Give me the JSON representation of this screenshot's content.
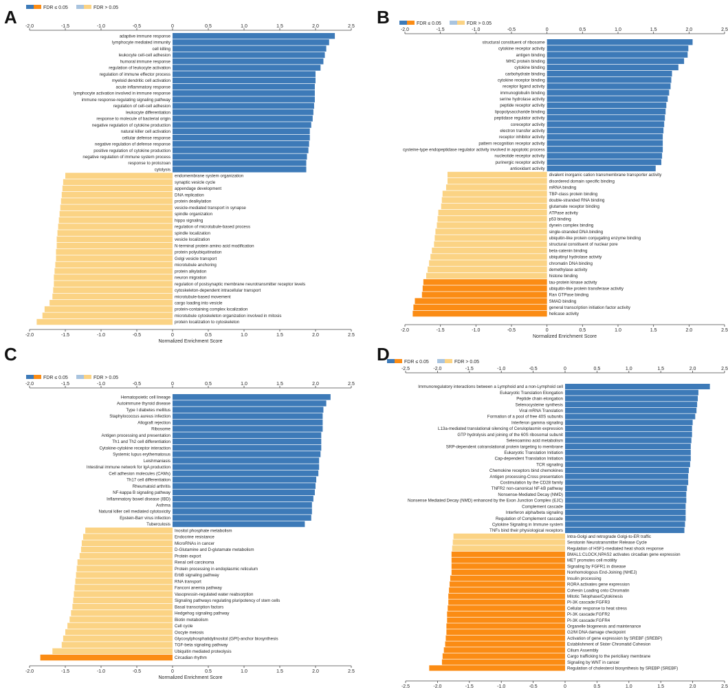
{
  "axis_label": "Normalized Enrichment Score",
  "colors": {
    "pos_sig": "#3d7ab8",
    "pos_nonsig": "#a9c4df",
    "neg_sig": "#fb8c14",
    "neg_nonsig": "#fbd384",
    "axis": "#444444",
    "text": "#222222",
    "letter": "#111111"
  },
  "chart_data": [
    {
      "panel": "A",
      "type": "bar",
      "orientation": "horizontal",
      "xlabel": "Normalized Enrichment Score",
      "xlim": [
        -2.0,
        2.5
      ],
      "xticks": [
        -2.0,
        -1.5,
        -1.0,
        -0.5,
        0,
        0.5,
        1.0,
        1.5,
        2.0,
        2.5
      ],
      "legend": [
        {
          "label": "FDR ≤ 0.05",
          "swatches": [
            "pos_sig",
            "neg_sig"
          ]
        },
        {
          "label": "FDR > 0.05",
          "swatches": [
            "pos_nonsig",
            "neg_nonsig"
          ]
        }
      ],
      "categories": [
        "adaptive immune response",
        "lymphocyte mediated immunity",
        "cell killing",
        "leukocyte cell-cell adhesion",
        "humoral immune response",
        "regulation of leukocyte activation",
        "regulation of immune effector process",
        "myeloid dendritic cell activation",
        "acute inflammatory response",
        "lymphocyte activation involved in immune response",
        "immune response-regulating signaling pathway",
        "regulation of cell-cell adhesion",
        "leukocyte differentiation",
        "response to molecule of bacterial origin",
        "negative regulation of cytokine production",
        "natural killer cell activation",
        "cellular defense response",
        "negative regulation of defense response",
        "positive regulation of cytokine production",
        "negative regulation of immune system process",
        "response to protozoan",
        "cytolysis",
        "endomembrane system organization",
        "synaptic vesicle cycle",
        "appendage development",
        "DNA replication",
        "protein dealkylation",
        "vesicle-mediated transport in synapse",
        "spindle organization",
        "hippo signaling",
        "regulation of microtubule-based process",
        "spindle localization",
        "vesicle localization",
        "N-terminal protein amino acid modification",
        "protein polyubiquitination",
        "Golgi vesicle transport",
        "microtubule anchoring",
        "protein alkylation",
        "neuron migration",
        "regulation of postsynaptic membrane neurotransmitter receptor levels",
        "cytoskeleton-dependent intracellular transport",
        "microtubule-based movement",
        "cargo loading into vesicle",
        "protein-containing complex localization",
        "microtubule cytoskeleton organization involved in mitosis",
        "protein localization to cytoskeleton"
      ],
      "values": [
        2.27,
        2.19,
        2.15,
        2.13,
        2.11,
        2.07,
        2.0,
        2.0,
        1.99,
        1.99,
        1.99,
        1.98,
        1.97,
        1.96,
        1.94,
        1.92,
        1.92,
        1.91,
        1.9,
        1.88,
        1.87,
        1.87,
        -1.5,
        -1.53,
        -1.54,
        -1.55,
        -1.56,
        -1.57,
        -1.58,
        -1.59,
        -1.6,
        -1.61,
        -1.62,
        -1.62,
        -1.63,
        -1.63,
        -1.64,
        -1.65,
        -1.66,
        -1.66,
        -1.67,
        -1.68,
        -1.72,
        -1.79,
        -1.82,
        -1.9
      ],
      "significant": [
        true,
        true,
        true,
        true,
        true,
        true,
        true,
        true,
        true,
        true,
        true,
        true,
        true,
        true,
        true,
        true,
        true,
        true,
        true,
        true,
        true,
        true,
        false,
        false,
        false,
        false,
        false,
        false,
        false,
        false,
        false,
        false,
        false,
        false,
        false,
        false,
        false,
        false,
        false,
        false,
        false,
        false,
        false,
        false,
        false,
        false
      ]
    },
    {
      "panel": "B",
      "type": "bar",
      "orientation": "horizontal",
      "xlabel": "Normalized Enrichment Score",
      "xlim": [
        -2.0,
        2.5
      ],
      "xticks": [
        -2.0,
        -1.5,
        -1.0,
        -0.5,
        0,
        0.5,
        1.0,
        1.5,
        2.0,
        2.5
      ],
      "legend": [
        {
          "label": "FDR ≤ 0.05",
          "swatches": [
            "pos_sig",
            "neg_sig"
          ]
        },
        {
          "label": "FDR > 0.05",
          "swatches": [
            "pos_nonsig",
            "neg_nonsig"
          ]
        }
      ],
      "categories": [
        "structural constituent of ribosome",
        "cytokine receptor activity",
        "antigen binding",
        "MHC protein binding",
        "cytokine binding",
        "carbohydrate binding",
        "cytokine receptor binding",
        "receptor ligand activity",
        "immunoglobulin binding",
        "serine hydrolase activity",
        "peptide receptor activity",
        "lipopolysaccharide binding",
        "peptidase regulator activity",
        "coreceptor activity",
        "electron transfer activity",
        "receptor inhibitor activity",
        "pattern recognition receptor activity",
        "cysteine-type endopeptidase regulator activity involved in apoptotic process",
        "nucleotide receptor activity",
        "purinergic receptor activity",
        "antioxidant activity",
        "divalent inorganic cation transmembrane transporter activity",
        "disordered domain specific binding",
        "mRNA binding",
        "TBP-class protein binding",
        "double-stranded RNA binding",
        "glutamate receptor binding",
        "ATPase activity",
        "p53 binding",
        "dynein complex binding",
        "single-stranded DNA binding",
        "ubiquitin-like protein conjugating enzyme binding",
        "structural constituent of nuclear pore",
        "beta-catenin binding",
        "ubiquitinyl hydrolase activity",
        "chromatin DNA binding",
        "demethylase activity",
        "histone binding",
        "tau-protein kinase activity",
        "ubiquitin-like protein transferase activity",
        "Ran GTPase binding",
        "SMAD binding",
        "general transcription initiation factor activity",
        "helicase activity"
      ],
      "values": [
        2.05,
        1.99,
        1.98,
        1.93,
        1.85,
        1.76,
        1.75,
        1.74,
        1.72,
        1.7,
        1.68,
        1.67,
        1.66,
        1.65,
        1.64,
        1.63,
        1.63,
        1.63,
        1.62,
        1.61,
        1.53,
        -1.4,
        -1.4,
        -1.42,
        -1.47,
        -1.48,
        -1.49,
        -1.53,
        -1.54,
        -1.55,
        -1.57,
        -1.58,
        -1.59,
        -1.62,
        -1.64,
        -1.66,
        -1.68,
        -1.7,
        -1.74,
        -1.75,
        -1.76,
        -1.86,
        -1.88,
        -1.89
      ],
      "significant": [
        true,
        true,
        true,
        true,
        true,
        true,
        true,
        true,
        true,
        true,
        true,
        true,
        true,
        true,
        true,
        true,
        true,
        true,
        true,
        true,
        true,
        false,
        false,
        false,
        false,
        false,
        false,
        false,
        false,
        false,
        false,
        false,
        false,
        false,
        false,
        false,
        false,
        false,
        true,
        true,
        true,
        true,
        true,
        true
      ]
    },
    {
      "panel": "C",
      "type": "bar",
      "orientation": "horizontal",
      "xlabel": "Normalized Enrichment Score",
      "xlim": [
        -2.0,
        2.5
      ],
      "xticks": [
        -2.0,
        -1.5,
        -1.0,
        -0.5,
        0,
        0.5,
        1.0,
        1.5,
        2.0,
        2.5
      ],
      "legend": [
        {
          "label": "FDR ≤ 0.05",
          "swatches": [
            "pos_sig",
            "neg_sig"
          ]
        },
        {
          "label": "FDR > 0.05",
          "swatches": [
            "pos_nonsig",
            "neg_nonsig"
          ]
        }
      ],
      "categories": [
        "Hematopoietic cell lineage",
        "Autoimmune thyroid disease",
        "Type I diabetes mellitus",
        "Staphylococcus aureus infection",
        "Allograft rejection",
        "Ribosome",
        "Antigen processing and presentation",
        "Th1 and Th2 cell differentiation",
        "Cytokine-cytokine receptor interaction",
        "Systemic lupus erythematosus",
        "Leishmaniasis",
        "Intestinal immune network for IgA production",
        "Cell adhesion molecules (CAMs)",
        "Th17 cell differentiation",
        "Rheumatoid arthritis",
        "NF-kappa B signaling pathway",
        "Inflammatory bowel disease (IBD)",
        "Asthma",
        "Natural killer cell mediated cytotoxicity",
        "Epstein-Barr virus infection",
        "Tuberculosis",
        "Inositol phosphate metabolism",
        "Endocrine resistance",
        "MicroRNAs in cancer",
        "D-Glutamine and D-glutamate metabolism",
        "Protein export",
        "Renal cell carcinoma",
        "Protein processing in endoplasmic reticulum",
        "ErbB signaling pathway",
        "RNA transport",
        "Fanconi anemia pathway",
        "Vasopressin-regulated water reabsorption",
        "Signaling pathways regulating pluripotency of stem cells",
        "Basal transcription factors",
        "Hedgehog signaling pathway",
        "Biotin metabolism",
        "Cell cycle",
        "Oocyte meiosis",
        "Glycosylphosphatidylinositol (GPI)-anchor biosynthesis",
        "TGF-beta signaling pathway",
        "Ubiquitin mediated proteolysis",
        "Circadian rhythm"
      ],
      "values": [
        2.21,
        2.15,
        2.11,
        2.1,
        2.1,
        2.1,
        2.08,
        2.08,
        2.08,
        2.07,
        2.05,
        2.05,
        2.04,
        2.01,
        2.0,
        1.99,
        1.97,
        1.95,
        1.95,
        1.94,
        1.85,
        -1.22,
        -1.25,
        -1.27,
        -1.28,
        -1.3,
        -1.33,
        -1.34,
        -1.35,
        -1.36,
        -1.37,
        -1.38,
        -1.39,
        -1.4,
        -1.42,
        -1.44,
        -1.47,
        -1.5,
        -1.53,
        -1.55,
        -1.68,
        -1.85
      ],
      "significant": [
        true,
        true,
        true,
        true,
        true,
        true,
        true,
        true,
        true,
        true,
        true,
        true,
        true,
        true,
        true,
        true,
        true,
        true,
        true,
        true,
        true,
        false,
        false,
        false,
        false,
        false,
        false,
        false,
        false,
        false,
        false,
        false,
        false,
        false,
        false,
        false,
        false,
        false,
        false,
        false,
        false,
        true
      ]
    },
    {
      "panel": "D",
      "type": "bar",
      "orientation": "horizontal",
      "xlabel": "Normalized Enrichment Score",
      "xlim": [
        -2.5,
        2.5
      ],
      "xticks": [
        -2.5,
        -2.0,
        -1.5,
        -1.0,
        -0.5,
        0,
        0.5,
        1.0,
        1.5,
        2.0,
        2.5
      ],
      "legend": [
        {
          "label": "FDR ≤ 0.05",
          "swatches": [
            "pos_sig",
            "neg_sig"
          ]
        },
        {
          "label": "FDR > 0.05",
          "swatches": [
            "pos_nonsig",
            "neg_nonsig"
          ]
        }
      ],
      "categories": [
        "Immunoregulatory interactions between a Lymphoid and a non-Lymphoid cell",
        "Eukaryotic Translation Elongation",
        "Peptide chain elongation",
        "Selenocysteine synthesis",
        "Viral mRNA Translation",
        "Formation of a pool of free 40S subunits",
        "Interferon gamma signaling",
        "L13a-mediated translational silencing of Ceruloplasmin expression",
        "GTP hydrolysis and joining of the 60S ribosomal subunit",
        "Selenoamino acid metabolism",
        "SRP-dependent cotranslational protein targeting to membrane",
        "Eukaryotic Translation Initiation",
        "Cap-dependent Translation Initiation",
        "TCR signaling",
        "Chemokine receptors bind chemokines",
        "Antigen processing-Cross presentation",
        "Costimulation by the CD28 family",
        "TNFR2 non-canonical NF-kB pathway",
        "Nonsense-Mediated Decay (NMD)",
        "Nonsense Mediated Decay (NMD) enhanced by the Exon Junction Complex (EJC)",
        "Complement cascade",
        "Interferon alpha/beta signaling",
        "Regulation of Complement cascade",
        "Cytokine Signaling in Immune system",
        "TNFs bind their physiological receptors",
        "Intra-Golgi and retrograde Golgi-to-ER traffic",
        "Serotonin Neurotransmitter Release Cycle",
        "Regulation of HSF1-mediated heat shock response",
        "BMAL1:CLOCK,NPAS2 activates circadian gene expression",
        "MET promotes cell motility",
        "Signaling by FGFR1 in disease",
        "Nonhomologous End-Joining (NHEJ)",
        "Insulin processing",
        "RORA activates gene expression",
        "Cohesin Loading onto Chromatin",
        "Mitotic Telophase/Cytokinesis",
        "PI-3K cascade:FGFR3",
        "Cellular response to heat stress",
        "PI-3K cascade:FGFR2",
        "PI-3K cascade:FGFR4",
        "Organelle biogenesis and maintenance",
        "G2/M DNA damage checkpoint",
        "Activation of gene expression by SREBF (SREBP)",
        "Establishment of Sister Chromatid Cohesion",
        "Cilium Assembly",
        "Cargo trafficking to the periciliary membrane",
        "Signaling by WNT in cancer",
        "Regulation of cholesterol biosynthesis by SREBP (SREBF)"
      ],
      "values": [
        2.27,
        2.09,
        2.08,
        2.07,
        2.06,
        2.04,
        2.0,
        1.99,
        1.99,
        1.98,
        1.97,
        1.97,
        1.97,
        1.96,
        1.94,
        1.93,
        1.93,
        1.91,
        1.9,
        1.9,
        1.89,
        1.89,
        1.89,
        1.88,
        1.87,
        -1.75,
        -1.76,
        -1.77,
        -1.78,
        -1.78,
        -1.78,
        -1.78,
        -1.8,
        -1.81,
        -1.82,
        -1.83,
        -1.83,
        -1.84,
        -1.85,
        -1.85,
        -1.86,
        -1.86,
        -1.87,
        -1.88,
        -1.9,
        -1.92,
        -1.93,
        -2.13
      ],
      "significant": [
        true,
        true,
        true,
        true,
        true,
        true,
        true,
        true,
        true,
        true,
        true,
        true,
        true,
        true,
        true,
        true,
        true,
        true,
        true,
        true,
        true,
        true,
        true,
        true,
        true,
        false,
        false,
        false,
        true,
        true,
        true,
        true,
        true,
        true,
        true,
        true,
        true,
        true,
        true,
        true,
        true,
        true,
        true,
        true,
        true,
        true,
        true,
        true
      ]
    }
  ]
}
